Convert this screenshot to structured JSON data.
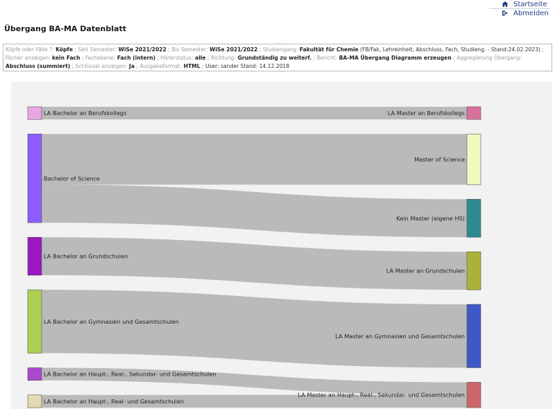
{
  "nav": {
    "home_label": "Startseite",
    "logout_label": "Abmelden",
    "home_icon": "home-icon",
    "logout_icon": "signout-icon"
  },
  "page": {
    "title": "Übergang BA-MA Datenblatt"
  },
  "filters": {
    "koepfe_label": "Köpfe oder Fälle ?:",
    "koepfe_value": "Köpfe",
    "seit_label": "Seit Semester:",
    "seit_value": "WiSe 2021/2022",
    "bis_label": "Bis Semester:",
    "bis_value": "WiSe 2021/2022",
    "studiengang_label": "Studiengang:",
    "studiengang_value": "Fakultät für Chemie",
    "studiengang_detail": "(FB/Fak, Lehreinheit, Abschluss, Fach, Studieng. - Stand:24.02.2023)",
    "faecher_label": "Fächer anzeigen:",
    "faecher_value": "kein Fach",
    "fachebene_label": "Fachebene:",
    "fachebene_value": "Fach (intern)",
    "hoererstatus_label": "Hörerstatus:",
    "hoererstatus_value": "alle",
    "richtung_label": "Richtung:",
    "richtung_value": "Grundständig zu weiterf.",
    "bericht_label": "Bericht:",
    "bericht_value": "BA-MA Übergang Diagramm erzeugen",
    "aggregierung_label": "Aggregierung Übergang:",
    "aggregierung_value": "Abschluss (summiert)",
    "schluessel_label": "Schlüssel anzeigen:",
    "schluessel_value": "Ja",
    "ausgabe_label": "Ausgabeformat:",
    "ausgabe_value": "HTML",
    "user_text": "User: sander",
    "stand_text": "Stand: 14.12.2018"
  },
  "sankey": {
    "sources": [
      {
        "name": "LA Bachelor an Berufskollegs",
        "color": "#e8a6e3"
      },
      {
        "name": "Bachelor of Science",
        "color": "#8c5cff"
      },
      {
        "name": "LA Bachelor an Grundschulen",
        "color": "#9c17bf"
      },
      {
        "name": "LA Bachelor an Gymnasien und Gesamtschulen",
        "color": "#aed052"
      },
      {
        "name": "LA Bachelor an Haupt-, Real-, Sekundar- und Gesamtschulen",
        "color": "#ac48d0"
      },
      {
        "name": "LA Bachelor an Haupt-, Real- und Gesamtschulen",
        "color": "#e2dab0"
      }
    ],
    "targets": [
      {
        "name": "LA Master an Berufskollegs",
        "color": "#d9719e"
      },
      {
        "name": "Master of Science",
        "color": "#effac0"
      },
      {
        "name": "Kein Master (eigene HS)",
        "color": "#2f8a8e"
      },
      {
        "name": "LA Master an Grundschulen",
        "color": "#acb13a"
      },
      {
        "name": "LA Master an Gymnasien und Gesamtschulen",
        "color": "#3d5ac8"
      },
      {
        "name": "LA Master an Haupt-, Real-, Sekundar- und Gesamtschulen",
        "color": "#cb676b"
      }
    ],
    "links": [
      {
        "source": "LA Bachelor an Berufskollegs",
        "target": "LA Master an Berufskollegs",
        "value": 2
      },
      {
        "source": "Bachelor of Science",
        "target": "Master of Science",
        "value": 8
      },
      {
        "source": "Bachelor of Science",
        "target": "Kein Master (eigene HS)",
        "value": 6
      },
      {
        "source": "LA Bachelor an Grundschulen",
        "target": "LA Master an Grundschulen",
        "value": 6
      },
      {
        "source": "LA Bachelor an Gymnasien und Gesamtschulen",
        "target": "LA Master an Gymnasien und Gesamtschulen",
        "value": 10
      },
      {
        "source": "LA Bachelor an Haupt-, Real-, Sekundar- und Gesamtschulen",
        "target": "LA Master an Haupt-, Real-, Sekundar- und Gesamtschulen",
        "value": 2
      },
      {
        "source": "LA Bachelor an Haupt-, Real- und Gesamtschulen",
        "target": "LA Master an Haupt-, Real-, Sekundar- und Gesamtschulen",
        "value": 2
      }
    ],
    "link_color": "#b0b0b0"
  }
}
